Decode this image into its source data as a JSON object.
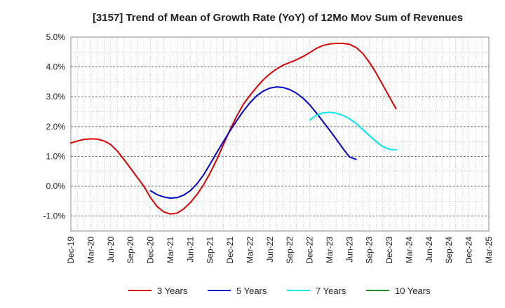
{
  "chart_data": {
    "type": "line",
    "title": "[3157]  Trend of Mean of Growth Rate (YoY) of 12Mo Mov Sum of Revenues",
    "xlabel": "",
    "ylabel": "",
    "ylim": [
      -1.5,
      5.0
    ],
    "yticks": [
      -1.0,
      0.0,
      1.0,
      2.0,
      3.0,
      4.0,
      5.0
    ],
    "ytick_labels": [
      "-1.0%",
      "0.0%",
      "1.0%",
      "2.0%",
      "3.0%",
      "4.0%",
      "5.0%"
    ],
    "x_labels": [
      "Dec-19",
      "Mar-20",
      "Jun-20",
      "Sep-20",
      "Dec-20",
      "Mar-21",
      "Jun-21",
      "Sep-21",
      "Dec-21",
      "Mar-22",
      "Jun-22",
      "Sep-22",
      "Dec-22",
      "Mar-23",
      "Jun-23",
      "Sep-23",
      "Dec-23",
      "Mar-24",
      "Jun-24",
      "Sep-24",
      "Dec-24",
      "Mar-25"
    ],
    "grid": true,
    "legend_position": "bottom",
    "series": [
      {
        "name": "3 Years",
        "color": "#dd0000",
        "x": [
          0,
          1,
          2,
          3,
          4,
          5,
          6,
          7,
          8,
          9,
          10,
          11,
          12,
          13,
          14,
          15,
          16,
          17,
          18,
          19,
          20,
          21,
          22,
          23,
          24,
          25,
          26,
          27,
          28,
          29,
          30,
          31,
          32,
          33,
          34,
          35,
          36,
          37,
          38,
          39,
          40,
          41,
          42,
          43,
          44,
          45,
          46,
          47,
          48,
          49,
          50,
          51,
          52,
          53,
          54,
          55,
          56,
          57,
          58,
          59,
          60
        ],
        "values": [
          1.45,
          1.52,
          1.57,
          1.59,
          1.58,
          1.52,
          1.4,
          1.18,
          0.9,
          0.6,
          0.3,
          0.0,
          -0.38,
          -0.68,
          -0.86,
          -0.93,
          -0.9,
          -0.76,
          -0.55,
          -0.28,
          0.05,
          0.45,
          0.9,
          1.4,
          1.9,
          2.35,
          2.75,
          3.05,
          3.32,
          3.57,
          3.77,
          3.93,
          4.06,
          4.15,
          4.24,
          4.35,
          4.48,
          4.62,
          4.72,
          4.77,
          4.79,
          4.79,
          4.76,
          4.65,
          4.45,
          4.15,
          3.8,
          3.4,
          3.0,
          2.6,
          null,
          null,
          null,
          null,
          null,
          null,
          null,
          null,
          null,
          null,
          null
        ]
      },
      {
        "name": "5 Years",
        "color": "#0000cc",
        "x": [
          0,
          1,
          2,
          3,
          4,
          5,
          6,
          7,
          8,
          9,
          10,
          11,
          12,
          13,
          14,
          15,
          16,
          17,
          18,
          19,
          20,
          21,
          22,
          23,
          24,
          25,
          26,
          27,
          28,
          29,
          30,
          31,
          32,
          33,
          34,
          35,
          36,
          37,
          38,
          39,
          40,
          41,
          42,
          43,
          44,
          45,
          46,
          47,
          48,
          49
        ],
        "values": [
          null,
          null,
          null,
          null,
          null,
          null,
          null,
          null,
          null,
          null,
          null,
          null,
          -0.15,
          -0.28,
          -0.36,
          -0.4,
          -0.38,
          -0.3,
          -0.15,
          0.08,
          0.38,
          0.75,
          1.13,
          1.5,
          1.86,
          2.2,
          2.52,
          2.8,
          3.03,
          3.19,
          3.29,
          3.33,
          3.31,
          3.24,
          3.12,
          2.95,
          2.73,
          2.46,
          2.17,
          1.88,
          1.58,
          1.27,
          0.98,
          0.9,
          null,
          null,
          null,
          null,
          null,
          null
        ]
      },
      {
        "name": "7 Years",
        "color": "#00e5ee",
        "x": [
          0,
          1,
          2,
          3,
          4,
          5,
          6,
          7,
          8,
          9,
          10,
          11,
          12,
          13,
          14,
          15,
          16,
          17,
          18,
          19,
          20,
          21,
          22,
          23,
          24,
          25,
          26,
          27,
          28,
          29,
          30,
          31,
          32,
          33,
          34,
          35,
          36,
          37,
          38,
          39,
          40,
          41,
          42,
          43,
          44,
          45,
          46,
          47,
          48,
          49
        ],
        "values": [
          null,
          null,
          null,
          null,
          null,
          null,
          null,
          null,
          null,
          null,
          null,
          null,
          null,
          null,
          null,
          null,
          null,
          null,
          null,
          null,
          null,
          null,
          null,
          null,
          null,
          null,
          null,
          null,
          null,
          null,
          null,
          null,
          null,
          null,
          null,
          null,
          2.22,
          2.38,
          2.46,
          2.48,
          2.45,
          2.38,
          2.26,
          2.1,
          1.9,
          1.7,
          1.5,
          1.33,
          1.24,
          1.22
        ]
      },
      {
        "name": "10 Years",
        "color": "#228b22",
        "x": [],
        "values": []
      }
    ]
  }
}
